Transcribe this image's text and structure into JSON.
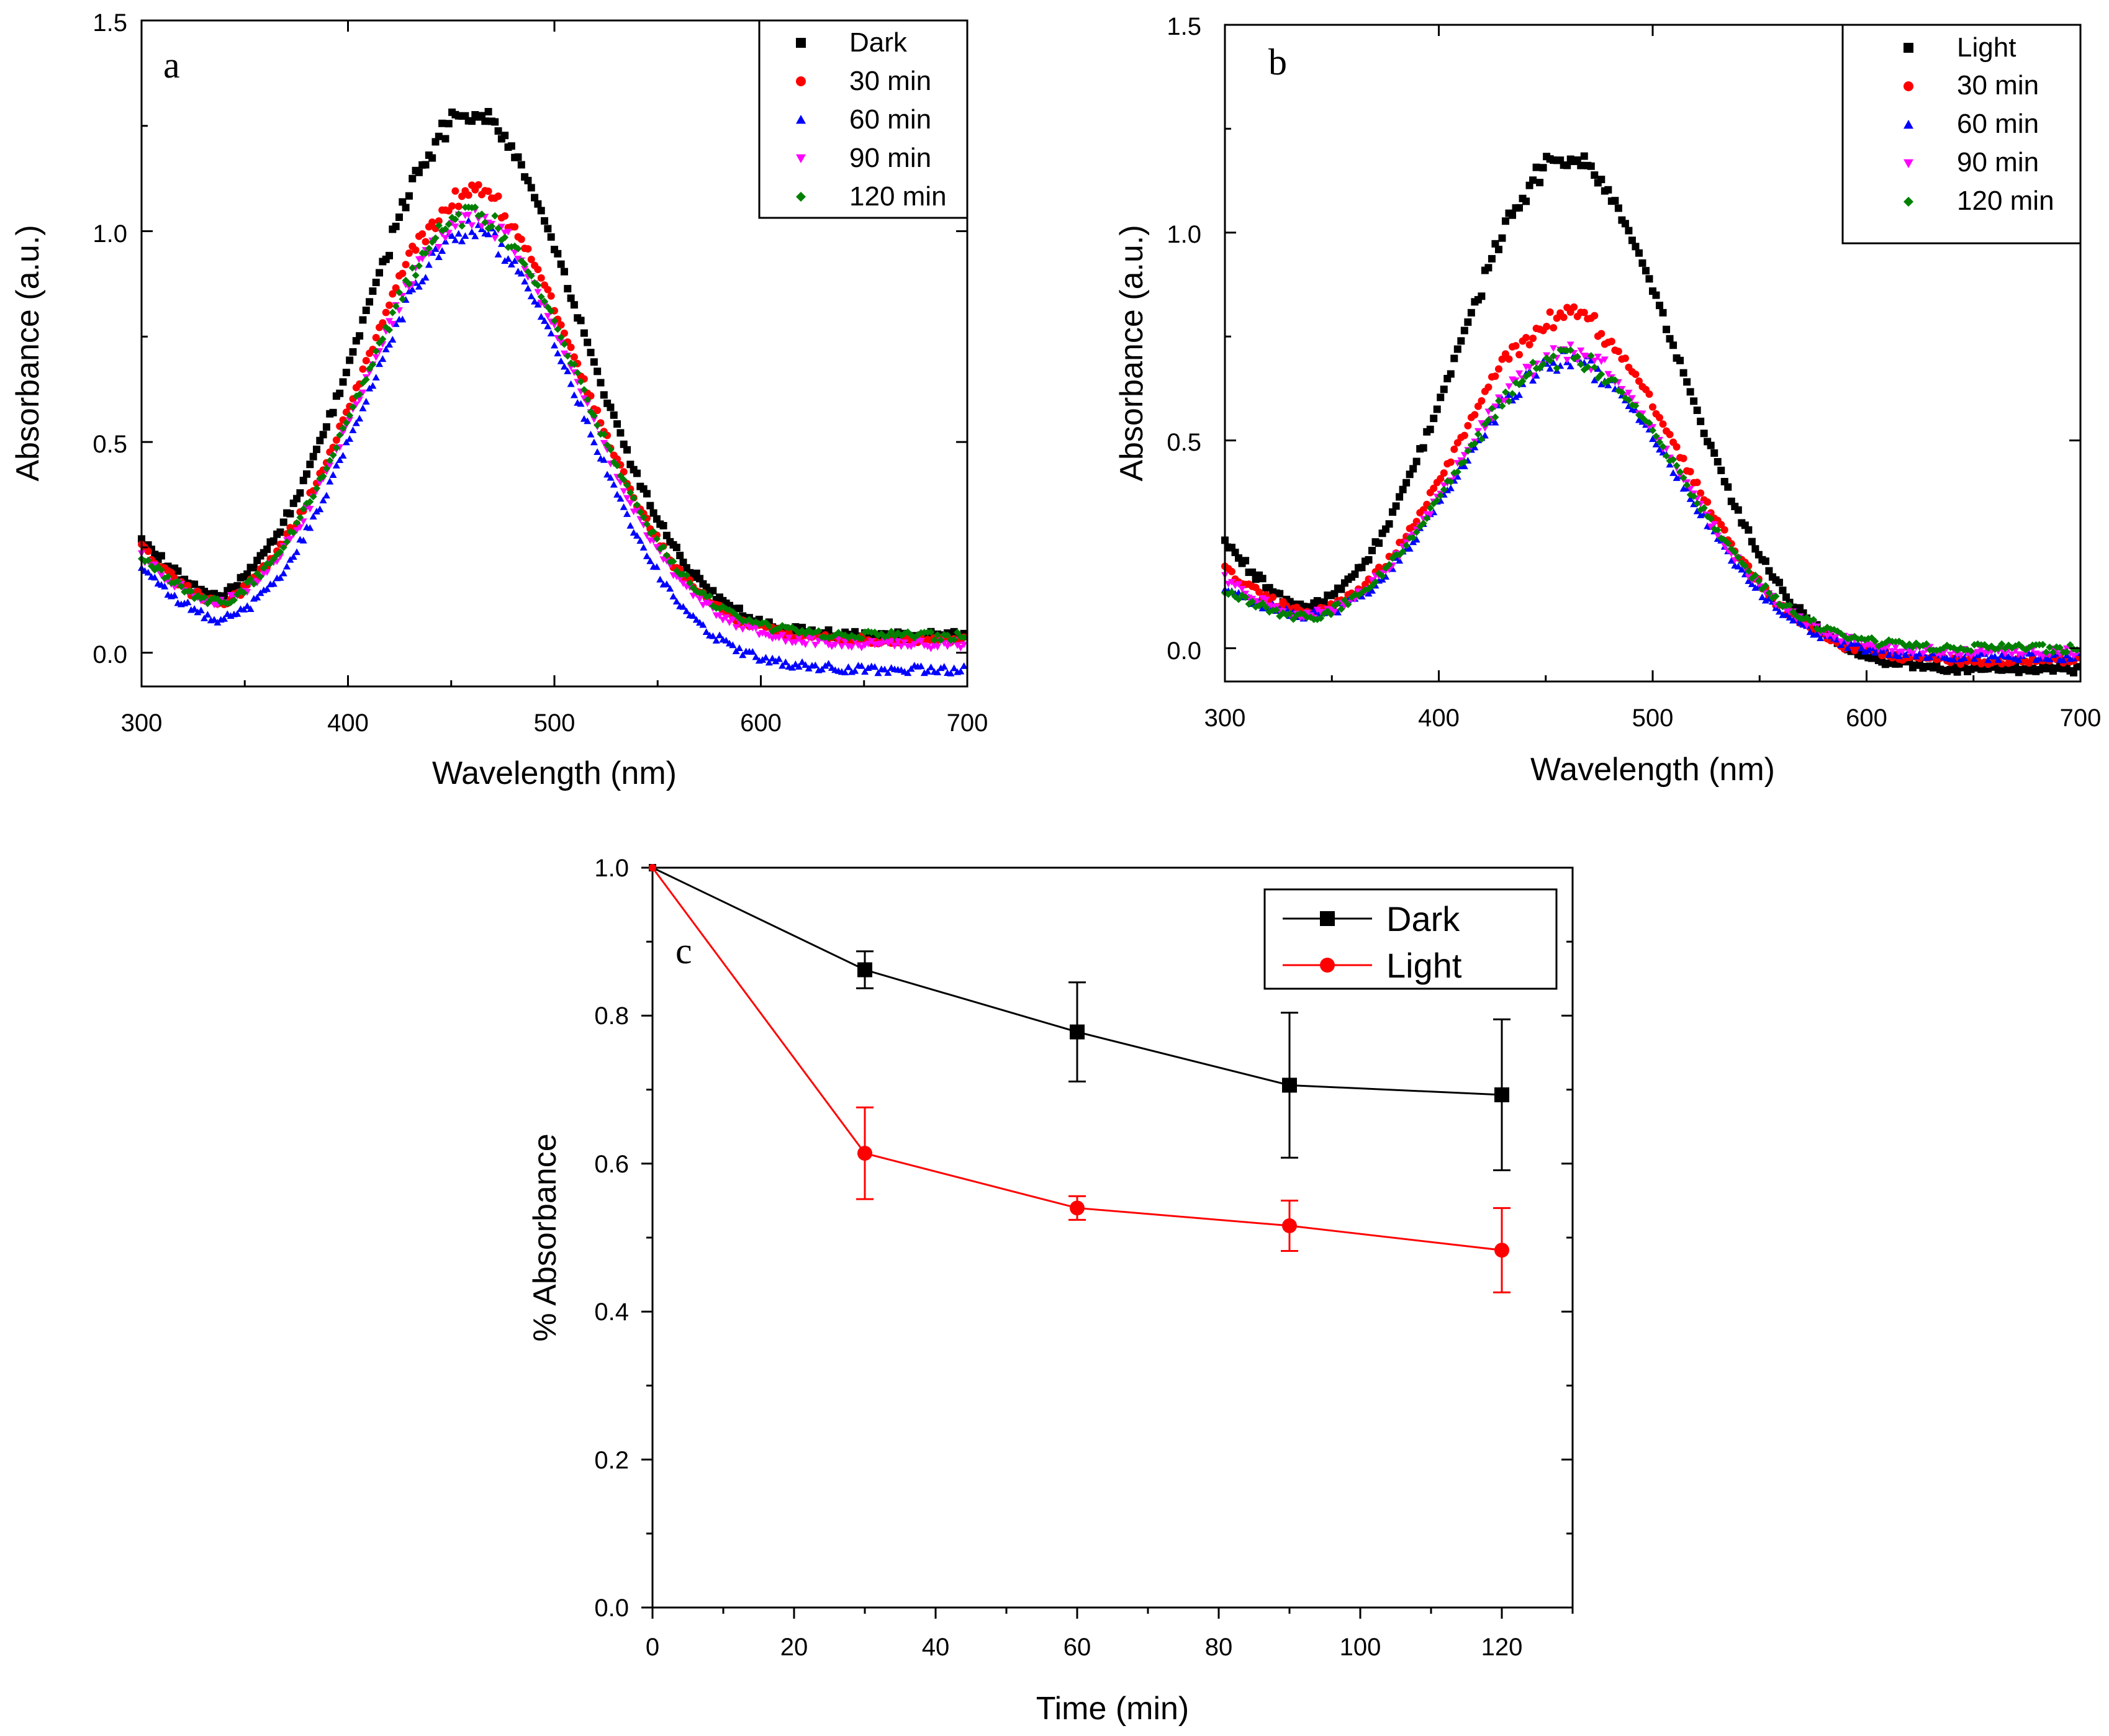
{
  "chart_data": [
    {
      "panel": "a",
      "type": "scatter",
      "xlabel": "Wavelength (nm)",
      "ylabel": "Absorbance (a.u.)",
      "xlim": [
        300,
        700
      ],
      "ylim": [
        -0.08,
        1.5
      ],
      "xticks": [
        "300",
        "400",
        "500",
        "600",
        "700"
      ],
      "yticks": [
        "0.0",
        "0.5",
        "1.0",
        "1.5"
      ],
      "legend_position": "top-right",
      "series": [
        {
          "name": "Dark",
          "color": "#000000",
          "marker": "square",
          "peak": 1.28,
          "min": 0.135,
          "start": 0.27,
          "baseline": 0.04
        },
        {
          "name": "30 min",
          "color": "#ff0000",
          "marker": "circle",
          "peak": 1.09,
          "min": 0.12,
          "start": 0.25,
          "baseline": 0.03
        },
        {
          "name": "60 min",
          "color": "#0000ff",
          "marker": "triangle-up",
          "peak": 1.0,
          "min": 0.08,
          "start": 0.21,
          "baseline": -0.04
        },
        {
          "name": "90 min",
          "color": "#ff00ff",
          "marker": "triangle-down",
          "peak": 1.03,
          "min": 0.12,
          "start": 0.23,
          "baseline": 0.02
        },
        {
          "name": "120 min",
          "color": "#008000",
          "marker": "diamond",
          "peak": 1.04,
          "min": 0.12,
          "start": 0.23,
          "baseline": 0.04
        }
      ]
    },
    {
      "panel": "b",
      "type": "scatter",
      "xlabel": "Wavelength (nm)",
      "ylabel": "Absorbance (a.u.)",
      "xlim": [
        300,
        700
      ],
      "ylim": [
        -0.08,
        1.5
      ],
      "xticks": [
        "300",
        "400",
        "500",
        "600",
        "700"
      ],
      "yticks": [
        "0.0",
        "0.5",
        "1.0",
        "1.5"
      ],
      "legend_position": "top-right",
      "series": [
        {
          "name": "Light",
          "color": "#000000",
          "marker": "square",
          "peak": 1.18,
          "min": 0.1,
          "start": 0.26,
          "baseline": -0.05
        },
        {
          "name": "30 min",
          "color": "#ff0000",
          "marker": "circle",
          "peak": 0.8,
          "min": 0.09,
          "start": 0.19,
          "baseline": -0.03
        },
        {
          "name": "60 min",
          "color": "#0000ff",
          "marker": "triangle-up",
          "peak": 0.69,
          "min": 0.08,
          "start": 0.15,
          "baseline": -0.02
        },
        {
          "name": "90 min",
          "color": "#ff00ff",
          "marker": "triangle-down",
          "peak": 0.71,
          "min": 0.08,
          "start": 0.17,
          "baseline": -0.01
        },
        {
          "name": "120 min",
          "color": "#008000",
          "marker": "diamond",
          "peak": 0.7,
          "min": 0.075,
          "start": 0.14,
          "baseline": 0.0
        }
      ]
    },
    {
      "panel": "c",
      "type": "line",
      "xlabel": "Time (min)",
      "ylabel": "% Absorbance",
      "xlim": [
        0,
        130
      ],
      "ylim": [
        0,
        1.0
      ],
      "xticks": [
        "0",
        "20",
        "40",
        "60",
        "80",
        "100",
        "120"
      ],
      "yticks": [
        "0.0",
        "0.2",
        "0.4",
        "0.6",
        "0.8",
        "1.0"
      ],
      "legend_position": "top-right",
      "series": [
        {
          "name": "Dark",
          "color": "#000000",
          "marker": "square",
          "x": [
            0,
            30,
            60,
            90,
            120
          ],
          "y": [
            1.0,
            0.862,
            0.778,
            0.706,
            0.693
          ],
          "err": [
            0,
            0.025,
            0.067,
            0.098,
            0.102
          ]
        },
        {
          "name": "Light",
          "color": "#ff0000",
          "marker": "circle",
          "x": [
            0,
            30,
            60,
            90,
            120
          ],
          "y": [
            1.0,
            0.614,
            0.54,
            0.516,
            0.483
          ],
          "err": [
            0,
            0.062,
            0.016,
            0.034,
            0.057
          ]
        }
      ]
    }
  ]
}
